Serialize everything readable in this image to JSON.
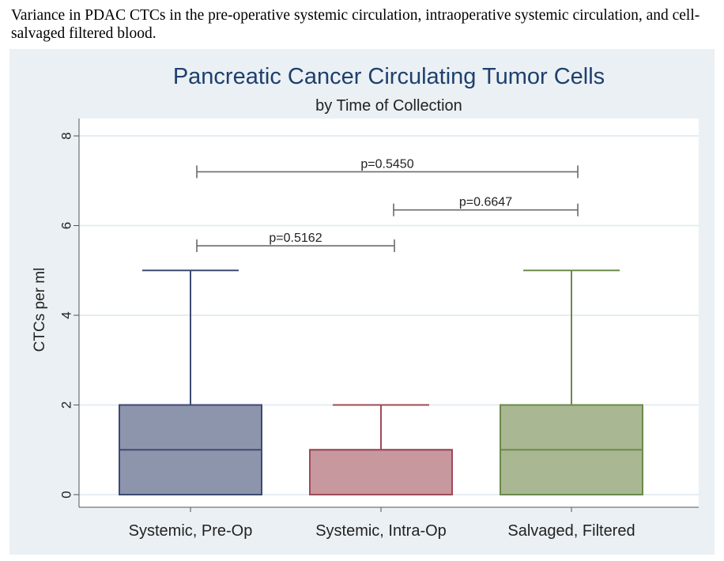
{
  "caption": "Variance in PDAC CTCs in the pre-operative systemic circulation, intraoperative systemic circulation, and cell-salvaged filtered blood.",
  "chart_data": {
    "type": "box",
    "title": "Pancreatic Cancer Circulating Tumor Cells",
    "subtitle": "by Time of Collection",
    "xlabel": "",
    "ylabel": "CTCs per ml",
    "ylim": [
      0,
      8
    ],
    "yticks": [
      "0",
      "2",
      "4",
      "6",
      "8"
    ],
    "grid": true,
    "categories": [
      "Systemic, Pre-Op",
      "Systemic, Intra-Op",
      "Salvaged, Filtered"
    ],
    "boxes": [
      {
        "category": "Systemic, Pre-Op",
        "min": 0,
        "q1": 0,
        "median": 1,
        "q3": 2,
        "max": 5,
        "color": "#8d95ac",
        "edge": "#3e4a73"
      },
      {
        "category": "Systemic, Intra-Op",
        "min": 0,
        "q1": 0,
        "median": 1,
        "q3": 1,
        "max": 2,
        "color": "#c8989f",
        "edge": "#9e4b58"
      },
      {
        "category": "Salvaged, Filtered",
        "min": 0,
        "q1": 0,
        "median": 1,
        "q3": 2,
        "max": 5,
        "color": "#a9b893",
        "edge": "#6b8a4a"
      }
    ],
    "annotations": [
      {
        "text": "p=0.5450",
        "from": "Systemic, Pre-Op",
        "to": "Salvaged, Filtered",
        "y": 7.2
      },
      {
        "text": "p=0.6647",
        "from": "Systemic, Intra-Op",
        "to": "Salvaged, Filtered",
        "y": 6.35
      },
      {
        "text": "p=0.5162",
        "from": "Systemic, Pre-Op",
        "to": "Systemic, Intra-Op",
        "y": 5.55
      }
    ],
    "colors": {
      "title": "#1f3f6e",
      "text": "#222222",
      "outer_bg": "#eaf0f4",
      "plot_bg": "#ffffff",
      "grid": "#e6edf2",
      "bracket": "#6b6b6b"
    }
  }
}
